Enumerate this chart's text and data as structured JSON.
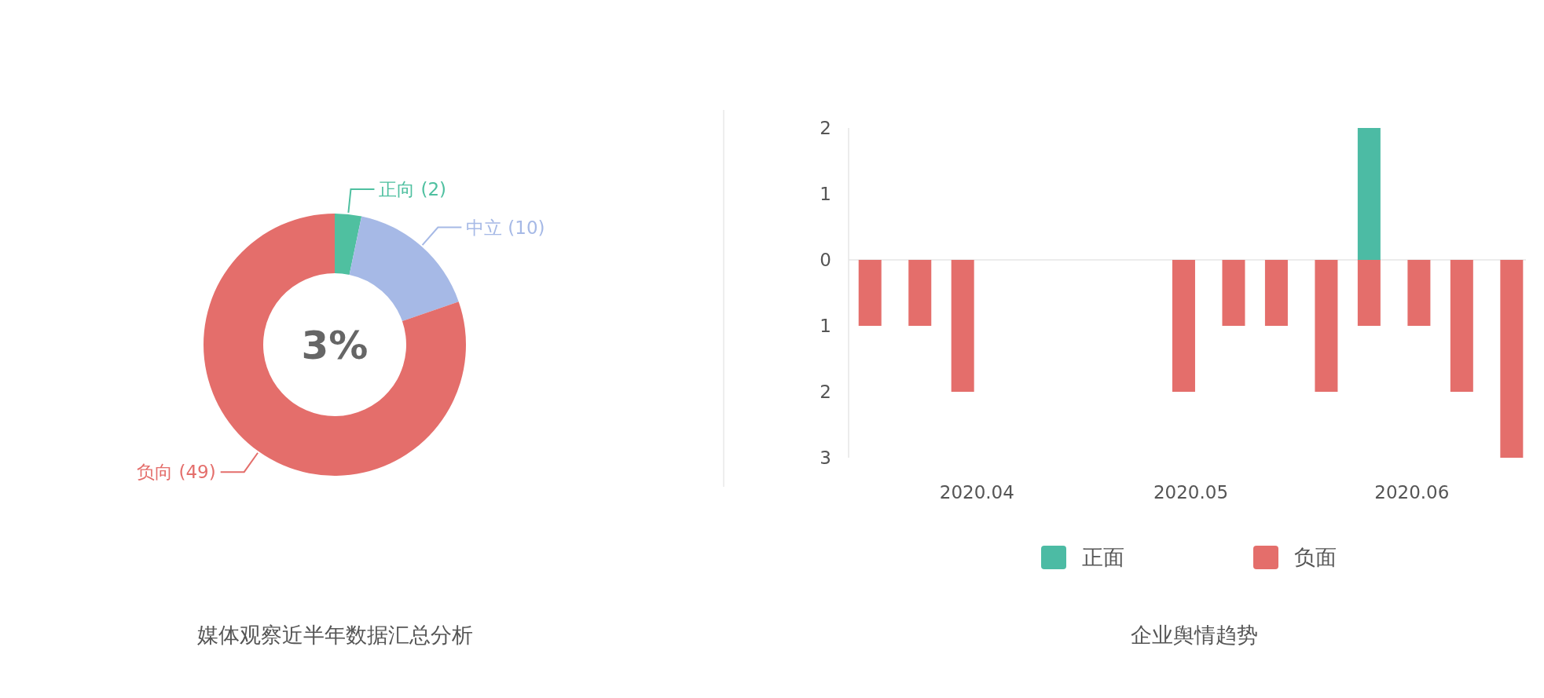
{
  "chart_data": [
    {
      "type": "donut",
      "title": "媒体观察近半年数据汇总分析",
      "categories": [
        "正向",
        "中立",
        "负向"
      ],
      "values": [
        2,
        10,
        49
      ],
      "colors": [
        "#4fc0a0",
        "#a6b9e6",
        "#e46e6b"
      ],
      "value_labels": [
        "(2)",
        "(10)",
        "(49)"
      ],
      "annotations": [
        "3%"
      ]
    },
    {
      "type": "bar",
      "title": "企业舆情趋势",
      "legend": "bottom",
      "x": [
        "2020-03-17",
        "2020-03-24",
        "2020-03-30",
        "2020-04-30",
        "2020-05-07",
        "2020-05-13",
        "2020-05-20",
        "2020-05-26",
        "2020-06-02",
        "2020-06-08",
        "2020-06-15"
      ],
      "series": [
        {
          "name": "正面",
          "color": "#4cbba4",
          "values": [
            null,
            null,
            null,
            null,
            null,
            null,
            null,
            2,
            null,
            null,
            null
          ]
        },
        {
          "name": "负面",
          "color": "#e46e6b",
          "values": [
            -1,
            -1,
            -2,
            -2,
            -1,
            -1,
            -2,
            -1,
            -1,
            -2,
            -3
          ]
        }
      ],
      "xlim": [
        "2020-03-14",
        "2020-06-17"
      ],
      "xticks": [
        {
          "value": "2020-04-01",
          "label": "2020.04"
        },
        {
          "value": "2020-05-01",
          "label": "2020.05"
        },
        {
          "value": "2020-06-01",
          "label": "2020.06"
        }
      ],
      "ylim": [
        -3,
        2
      ],
      "yticks": [
        {
          "value": 2,
          "label": "2"
        },
        {
          "value": 1,
          "label": "1"
        },
        {
          "value": 0,
          "label": "0"
        },
        {
          "value": -1,
          "label": "1"
        },
        {
          "value": -2,
          "label": "2"
        },
        {
          "value": -3,
          "label": "3"
        }
      ]
    }
  ]
}
